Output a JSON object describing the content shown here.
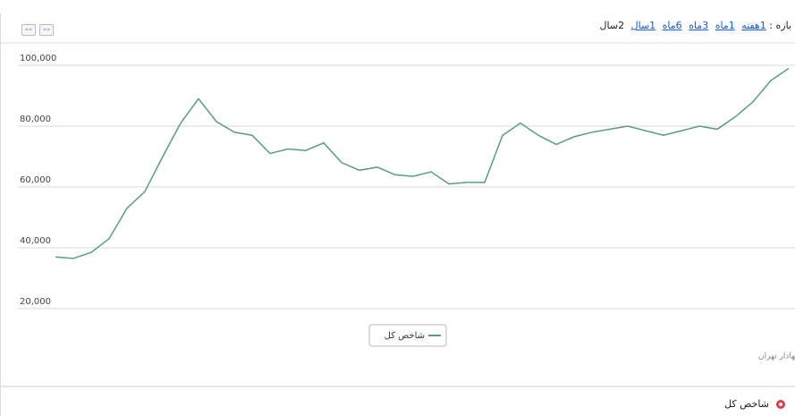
{
  "toolbar": {
    "label": "بازه :",
    "ranges": [
      "1هفته",
      "1ماه",
      "3ماه",
      "6ماه",
      "1سال"
    ],
    "current": "2سال"
  },
  "chart_data": {
    "type": "line",
    "series": [
      {
        "name": "شاخص کل",
        "color": "#5b9b86",
        "values": [
          37000,
          36500,
          38500,
          43000,
          53000,
          58500,
          70000,
          81000,
          89000,
          81500,
          78000,
          77000,
          71000,
          72500,
          72000,
          74500,
          68000,
          65500,
          66500,
          64000,
          63500,
          65000,
          61000,
          61500,
          61500,
          77000,
          81000,
          77000,
          74000,
          76500,
          78000,
          79000,
          80000,
          78500,
          77000,
          78500,
          80000,
          79000,
          83000,
          88000,
          95000,
          99000
        ]
      }
    ],
    "ylim": [
      0,
      104000
    ],
    "yticks": [
      {
        "value": 20000,
        "label": "20,000"
      },
      {
        "value": 40000,
        "label": "40,000"
      },
      {
        "value": 60000,
        "label": "60,000"
      },
      {
        "value": 80000,
        "label": "80,000"
      },
      {
        "value": 100000,
        "label": "100,000"
      }
    ],
    "grid": true,
    "credit": "بورس اوراق بهادار تهران"
  }
}
